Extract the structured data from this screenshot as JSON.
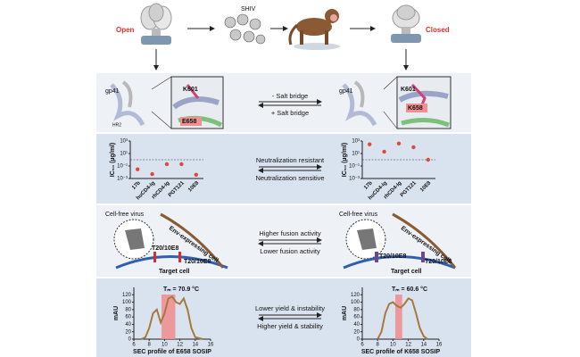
{
  "top": {
    "open": "Open",
    "shiv": "SHIV",
    "closed": "Closed"
  },
  "row1": {
    "left": {
      "gp41": "gp41",
      "hr2": "HR2",
      "k601": "K601",
      "e658": "E658"
    },
    "right": {
      "gp41": "gp41",
      "k601": "K601",
      "k658": "K658"
    },
    "forward": "- Salt bridge",
    "backward": "+ Salt bridge"
  },
  "row2": {
    "forward": "Neutralization resistant",
    "backward": "Neutralization sensitive"
  },
  "row3": {
    "left": {
      "virus": "Cell-free virus",
      "env_cell": "Env-expressing cell",
      "inhibitor1": "T20/10E8",
      "inhibitor2": "T20/10E8",
      "target": "Target cell"
    },
    "right": {
      "virus": "Cell-free virus",
      "env_cell": "Env-expressing cell",
      "inhibitor1": "T20/10E8",
      "inhibitor2": "T20/10E8",
      "target": "Target cell"
    },
    "forward": "Higher fusion activity",
    "backward": "Lower fusion activity"
  },
  "row4": {
    "forward": "Lower yield & instability",
    "backward": "Higher yield & stability"
  },
  "chart_data": [
    {
      "type": "scatter",
      "y_label": "IC₅₀ (µg/ml)",
      "categories": [
        "17b",
        "huCD4-Ig",
        "rhCD4-Ig",
        "PGT121",
        "10E8"
      ],
      "values": [
        0.03,
        0.005,
        0.2,
        0.2,
        0.004
      ],
      "color": "#e0483a",
      "log_y": true,
      "ylim": [
        0.001,
        1000
      ],
      "yticks": [
        {
          "value": 1000,
          "label": "10³"
        },
        {
          "value": 10,
          "label": "10¹"
        },
        {
          "value": 0.1,
          "label": "10⁻¹"
        },
        {
          "value": 0.001,
          "label": "10⁻³"
        }
      ],
      "reference_line": 1
    },
    {
      "type": "scatter",
      "y_label": "IC₅₀ (µg/ml)",
      "categories": [
        "17b",
        "huCD4-Ig",
        "rhCD4-Ig",
        "PGT121",
        "10E8"
      ],
      "values": [
        300,
        20,
        400,
        100,
        1
      ],
      "color": "#e0483a",
      "log_y": true,
      "ylim": [
        0.001,
        1000
      ],
      "yticks": [
        {
          "value": 1000,
          "label": "10³"
        },
        {
          "value": 10,
          "label": "10¹"
        },
        {
          "value": 0.1,
          "label": "10⁻¹"
        },
        {
          "value": 0.001,
          "label": "10⁻³"
        }
      ],
      "reference_line": 1
    },
    {
      "type": "line",
      "y_label": "mAU",
      "x_label": "SEC profile of E658 SOSIP",
      "annotation": "Tₘ = 70.9 °C",
      "x": [
        7,
        7.5,
        8,
        8.5,
        9,
        9.5,
        10,
        10.5,
        11,
        11.5,
        12,
        12.5,
        13,
        13.5,
        14,
        15
      ],
      "values": [
        0,
        5,
        30,
        70,
        80,
        45,
        70,
        110,
        115,
        100,
        95,
        110,
        80,
        30,
        5,
        0
      ],
      "color": "#a57a3c",
      "highlight": [
        9.6,
        11.4
      ],
      "highlight_color": "#f08c8c",
      "xlim": [
        6,
        16
      ],
      "xticks": [
        6,
        8,
        10,
        12,
        14,
        16
      ],
      "ylim": [
        0,
        140
      ],
      "yticks": [
        0,
        20,
        40,
        60,
        80,
        100,
        120
      ]
    },
    {
      "type": "line",
      "y_label": "mAU",
      "x_label": "SEC profile of K658 SOSIP",
      "annotation": "Tₘ = 60.6 °C",
      "x": [
        8,
        8.5,
        9,
        9.5,
        10,
        10.5,
        11,
        11.5,
        12,
        12.5,
        13,
        13.5,
        14,
        14.5
      ],
      "values": [
        0,
        20,
        70,
        95,
        100,
        90,
        85,
        95,
        110,
        105,
        70,
        30,
        8,
        0
      ],
      "color": "#a57a3c",
      "highlight": [
        10.3,
        11.2
      ],
      "highlight_color": "#f08c8c",
      "xlim": [
        6,
        16
      ],
      "xticks": [
        6,
        8,
        10,
        12,
        14,
        16
      ],
      "ylim": [
        0,
        140
      ],
      "yticks": [
        0,
        20,
        40,
        60,
        80,
        100,
        120
      ]
    }
  ]
}
